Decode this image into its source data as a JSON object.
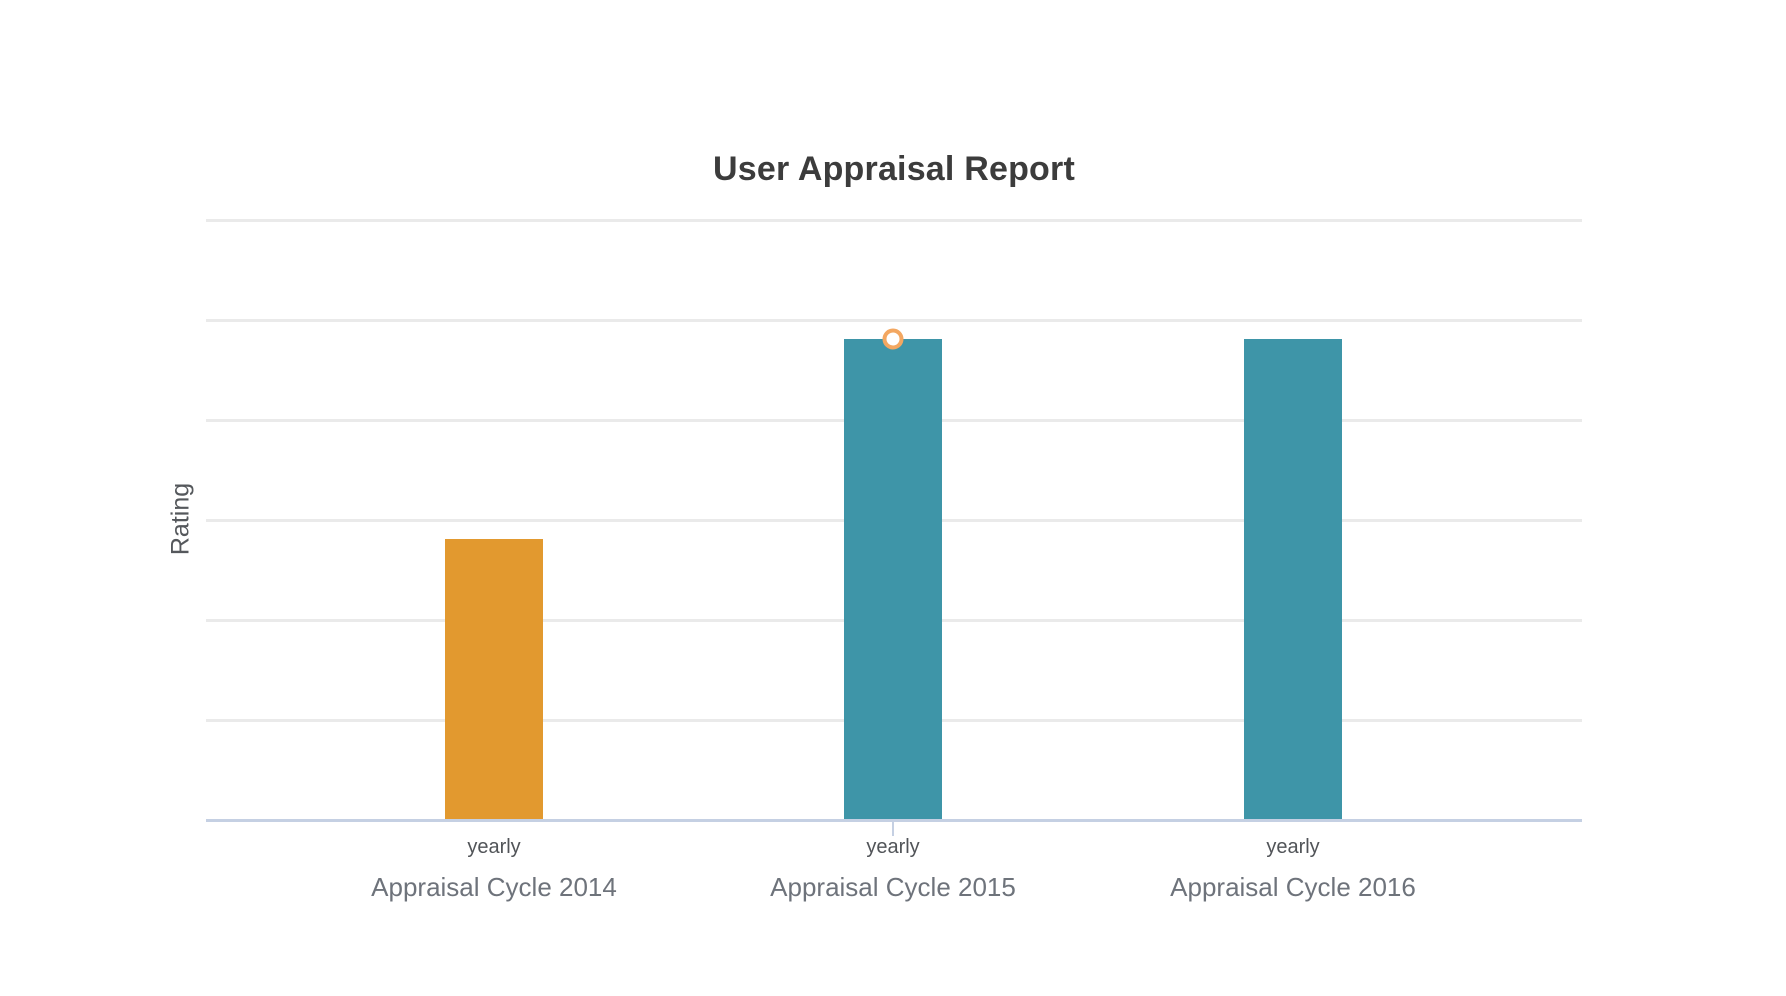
{
  "chart_data": {
    "type": "bar",
    "title": "User Appraisal Report",
    "xlabel": "",
    "ylabel": "Rating",
    "categories": [
      "Appraisal Cycle 2014",
      "Appraisal Cycle 2015",
      "Appraisal Cycle 2016"
    ],
    "series": [
      {
        "name": "yearly",
        "values": [
          2.8,
          4.8,
          4.8
        ]
      }
    ],
    "bar_sublabels": [
      "yearly",
      "yearly",
      "yearly"
    ],
    "bar_colors": [
      "#e2992f",
      "#3e95a8",
      "#3e95a8"
    ],
    "ylim": [
      0,
      6
    ],
    "gridline_step": 1,
    "grid": "horizontal gridlines, no y tick labels",
    "legend_position": "none",
    "hover": {
      "point_index": 1,
      "marker_ring_color": "#f3a761",
      "marker_fill_color": "#ffffff",
      "tick_color": "#c5d0e3"
    }
  },
  "colors": {
    "background": "#ffffff",
    "title_text": "#3c3c3c",
    "y_title_text": "#55585c",
    "sublabel_text": "#515458",
    "category_text": "#6e737b",
    "gridline": "#eaeaea",
    "axis_line": "#c5d0e3",
    "bar_orange": "#e2992f",
    "bar_teal": "#3e95a8"
  }
}
